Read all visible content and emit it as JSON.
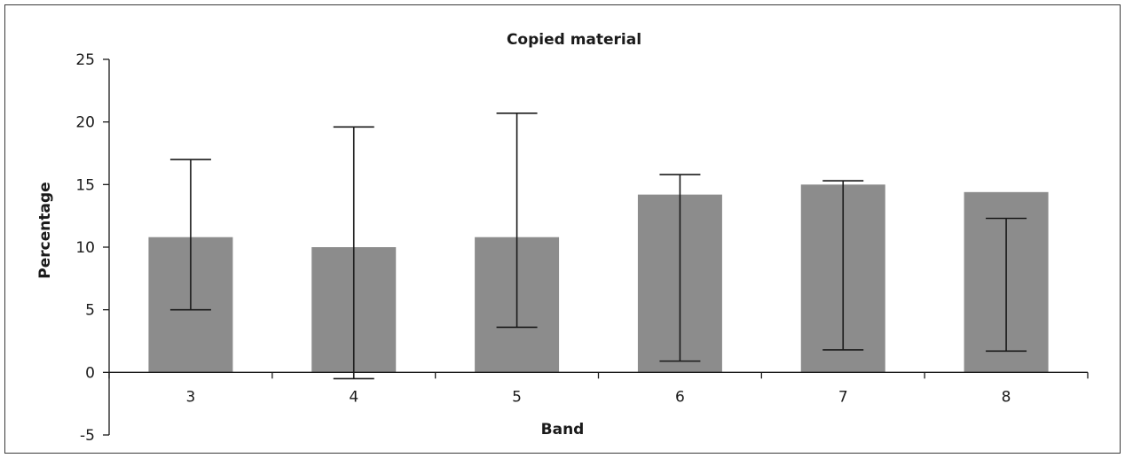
{
  "chart_data": {
    "type": "bar",
    "title": "Copied material",
    "xlabel": "Band",
    "ylabel": "Percentage",
    "categories": [
      "3",
      "4",
      "5",
      "6",
      "7",
      "8"
    ],
    "values": [
      10.8,
      10.0,
      10.8,
      14.2,
      15.0,
      14.4
    ],
    "error_low": [
      5.0,
      -0.5,
      3.6,
      0.9,
      1.8,
      1.7
    ],
    "error_high": [
      17.0,
      19.6,
      20.7,
      15.8,
      15.3,
      12.3
    ],
    "ylim": [
      -5,
      25
    ],
    "yticks": [
      "-5",
      "0",
      "5",
      "10",
      "15",
      "20",
      "25"
    ],
    "bar_color": "#8c8c8c",
    "grid": false
  }
}
